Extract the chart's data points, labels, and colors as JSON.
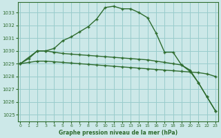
{
  "title": "Graphe pression niveau de la mer (hPa)",
  "bg_color": "#cce8e8",
  "grid_color": "#99cccc",
  "line_color": "#2d6b2d",
  "ylim": [
    1024.5,
    1033.8
  ],
  "xlim": [
    -0.3,
    23.3
  ],
  "yticks": [
    1025,
    1026,
    1027,
    1028,
    1029,
    1030,
    1031,
    1032,
    1033
  ],
  "xticks": [
    0,
    1,
    2,
    3,
    4,
    5,
    6,
    7,
    8,
    9,
    10,
    11,
    12,
    13,
    14,
    15,
    16,
    17,
    18,
    19,
    20,
    21,
    22,
    23
  ],
  "line1_x": [
    0,
    1,
    2,
    3,
    4,
    5,
    6,
    7,
    8,
    9,
    10,
    11,
    12,
    13,
    14,
    15,
    16,
    17,
    18,
    19,
    20,
    21,
    22,
    23
  ],
  "line1_y": [
    1029.0,
    1029.4,
    1030.0,
    1030.0,
    1030.2,
    1030.8,
    1031.1,
    1031.5,
    1031.9,
    1032.5,
    1033.4,
    1033.5,
    1033.3,
    1033.3,
    1033.0,
    1032.6,
    1031.4,
    1029.9,
    1029.9,
    1028.9,
    1028.4,
    1027.5,
    1026.4,
    1025.3
  ],
  "line2_x": [
    0,
    2,
    3,
    4,
    5,
    6,
    7,
    8,
    9,
    10,
    11,
    12,
    13,
    14,
    15,
    16,
    17,
    18,
    19,
    20,
    21,
    22,
    23
  ],
  "line2_y": [
    1029.0,
    1030.0,
    1030.0,
    1029.9,
    1029.8,
    1029.75,
    1029.7,
    1029.65,
    1029.6,
    1029.55,
    1029.5,
    1029.45,
    1029.4,
    1029.35,
    1029.3,
    1029.2,
    1029.1,
    1029.0,
    1028.9,
    1028.5,
    1027.5,
    1026.4,
    1025.3
  ],
  "line3_x": [
    0,
    1,
    2,
    3,
    4,
    5,
    6,
    7,
    8,
    9,
    10,
    11,
    12,
    13,
    14,
    15,
    16,
    17,
    18,
    19,
    20,
    21,
    22,
    23
  ],
  "line3_y": [
    1029.0,
    1029.1,
    1029.2,
    1029.2,
    1029.15,
    1029.1,
    1029.05,
    1029.0,
    1028.95,
    1028.9,
    1028.85,
    1028.8,
    1028.75,
    1028.7,
    1028.65,
    1028.6,
    1028.55,
    1028.5,
    1028.45,
    1028.4,
    1028.35,
    1028.3,
    1028.2,
    1028.0
  ]
}
